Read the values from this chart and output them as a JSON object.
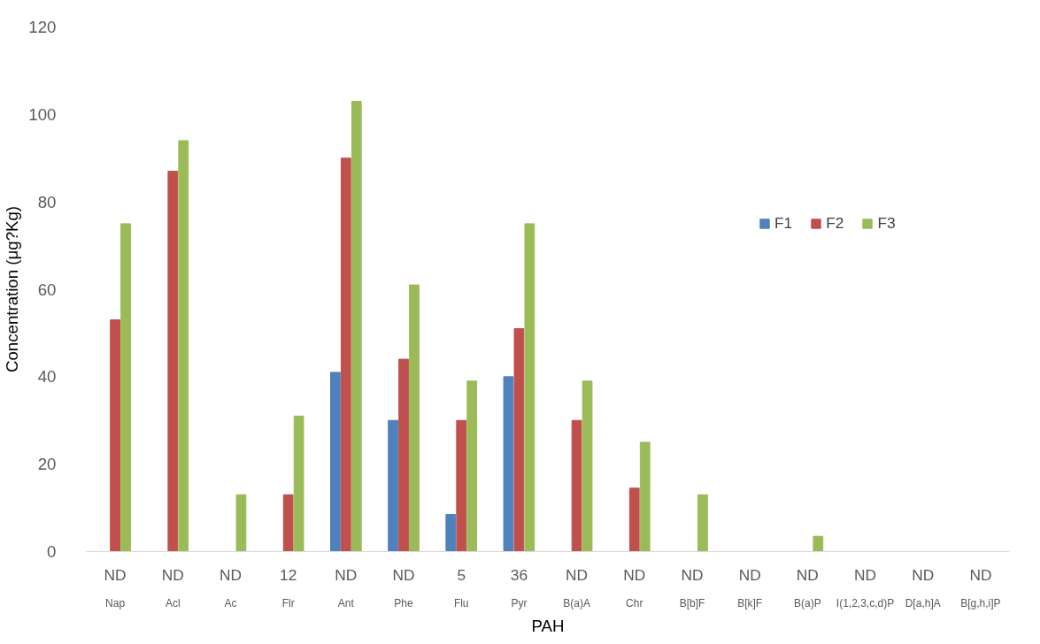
{
  "chart_data": {
    "type": "bar",
    "xlabel": "PAH",
    "ylabel": "Concentration (μg?Kg)",
    "categories": [
      "Nap",
      "Acl",
      "Ac",
      "Flr",
      "Ant",
      "Phe",
      "Flu",
      "Pyr",
      "B(a)A",
      "Chr",
      "B[b]F",
      "B[k]F",
      "B(a)P",
      "I(1,2,3,c,d)P",
      "D[a,h]A",
      "B[g,h,i]P"
    ],
    "series": [
      {
        "name": "F1",
        "color": "#4f81bd",
        "values": [
          0,
          0,
          0,
          0,
          41,
          30,
          8.5,
          40,
          0,
          0,
          0,
          0,
          0,
          0,
          0,
          0
        ]
      },
      {
        "name": "F2",
        "color": "#c0504d",
        "values": [
          53,
          87,
          0,
          13,
          90,
          44,
          30,
          51,
          30,
          14.5,
          0,
          0,
          0,
          0,
          0,
          0
        ]
      },
      {
        "name": "F3",
        "color": "#9bbb59",
        "values": [
          75,
          94,
          13,
          31,
          103,
          61,
          39,
          75,
          39,
          25,
          13,
          0,
          3.5,
          0,
          0,
          0
        ]
      }
    ],
    "annotations": [
      "ND",
      "ND",
      "ND",
      "12",
      "ND",
      "ND",
      "5",
      "36",
      "ND",
      "ND",
      "ND",
      "ND",
      "ND",
      "ND",
      "ND",
      "ND"
    ],
    "ylim": [
      0,
      120
    ],
    "yticks": [
      0,
      20,
      40,
      60,
      80,
      100,
      120
    ],
    "grid": false,
    "legend": "right"
  }
}
